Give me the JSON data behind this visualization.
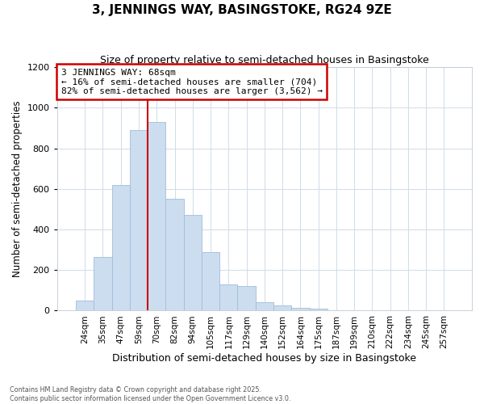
{
  "title": "3, JENNINGS WAY, BASINGSTOKE, RG24 9ZE",
  "subtitle": "Size of property relative to semi-detached houses in Basingstoke",
  "xlabel": "Distribution of semi-detached houses by size in Basingstoke",
  "ylabel": "Number of semi-detached properties",
  "categories": [
    "24sqm",
    "35sqm",
    "47sqm",
    "59sqm",
    "70sqm",
    "82sqm",
    "94sqm",
    "105sqm",
    "117sqm",
    "129sqm",
    "140sqm",
    "152sqm",
    "164sqm",
    "175sqm",
    "187sqm",
    "199sqm",
    "210sqm",
    "222sqm",
    "234sqm",
    "245sqm",
    "257sqm"
  ],
  "values": [
    50,
    265,
    620,
    890,
    930,
    550,
    470,
    290,
    130,
    120,
    40,
    25,
    15,
    10,
    3,
    2,
    0,
    0,
    0,
    0,
    0
  ],
  "bar_color": "#ccddf0",
  "bar_edge_color": "#a0bcd8",
  "vline_color": "#cc0000",
  "annotation_title": "3 JENNINGS WAY: 68sqm",
  "annotation_line1": "← 16% of semi-detached houses are smaller (704)",
  "annotation_line2": "82% of semi-detached houses are larger (3,562) →",
  "annotation_box_edgecolor": "#cc0000",
  "annotation_fill": "white",
  "ylim": [
    0,
    1200
  ],
  "yticks": [
    0,
    200,
    400,
    600,
    800,
    1000,
    1200
  ],
  "footer": "Contains HM Land Registry data © Crown copyright and database right 2025.\nContains public sector information licensed under the Open Government Licence v3.0.",
  "bg_color": "white",
  "title_fontsize": 11,
  "subtitle_fontsize": 9,
  "bar_width": 1.0,
  "vline_xindex": 4
}
